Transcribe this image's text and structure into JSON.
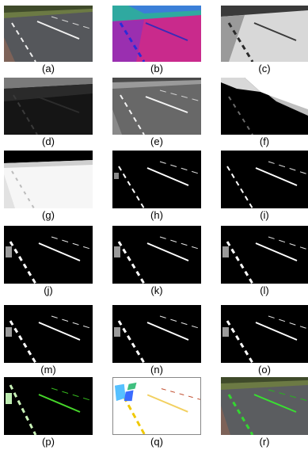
{
  "panels": [
    {
      "label": "(a)"
    },
    {
      "label": "(b)"
    },
    {
      "label": "(c)"
    },
    {
      "label": "(d)"
    },
    {
      "label": "(e)"
    },
    {
      "label": "(f)"
    },
    {
      "label": "(g)"
    },
    {
      "label": "(h)"
    },
    {
      "label": "(i)"
    },
    {
      "label": "(j)"
    },
    {
      "label": "(k)"
    },
    {
      "label": "(l)"
    },
    {
      "label": "(m)"
    },
    {
      "label": "(n)"
    },
    {
      "label": "(o)"
    },
    {
      "label": "(p)"
    },
    {
      "label": "(q)"
    },
    {
      "label": "(r)"
    }
  ]
}
